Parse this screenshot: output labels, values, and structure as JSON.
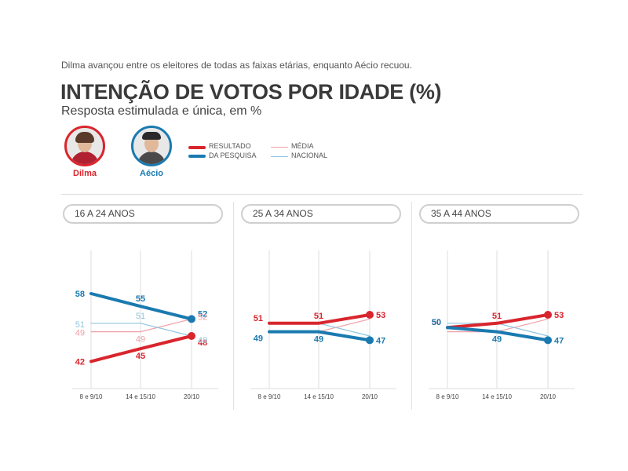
{
  "intro": "Dilma avançou entre os eleitores de todas as faixas etárias, enquanto Aécio recuou.",
  "title": "INTENÇÃO DE VOTOS POR IDADE (%)",
  "subtitle": "Resposta estimulada e única, em %",
  "candidates": [
    {
      "name": "Dilma",
      "color": "#d9252d"
    },
    {
      "name": "Aécio",
      "color": "#1a7ab0"
    }
  ],
  "legend": {
    "result_line1": "RESULTADO",
    "result_line2": "DA PESQUISA",
    "avg_line1": "MÉDIA",
    "avg_line2": "NACIONAL"
  },
  "colors": {
    "dilma": "#d9252d",
    "aecio": "#1a7ab0",
    "dilma_avg": "#f0a0a6",
    "aecio_avg": "#8fc5e0",
    "grid": "#dddddd"
  },
  "chart_data": [
    {
      "type": "line",
      "title": "16 A 24 ANOS",
      "categories": [
        "8 e 9/10",
        "14 e 15/10",
        "20/10"
      ],
      "series": [
        {
          "name": "Dilma",
          "role": "result",
          "values": [
            42,
            45,
            48
          ],
          "labels": [
            "42",
            "45",
            "48"
          ]
        },
        {
          "name": "Aécio",
          "role": "result",
          "values": [
            58,
            55,
            52
          ],
          "labels": [
            "58",
            "55",
            "52"
          ]
        },
        {
          "name": "Dilma",
          "role": "national_average",
          "values": [
            49,
            49,
            52
          ],
          "labels": [
            "49",
            "49",
            "52"
          ]
        },
        {
          "name": "Aécio",
          "role": "national_average",
          "values": [
            51,
            51,
            48
          ],
          "labels": [
            "51",
            "51",
            "48"
          ]
        }
      ]
    },
    {
      "type": "line",
      "title": "25 A 34 ANOS",
      "categories": [
        "8 e 9/10",
        "14 e 15/10",
        "20/10"
      ],
      "series": [
        {
          "name": "Dilma",
          "role": "result",
          "values": [
            51,
            51,
            53
          ],
          "labels": [
            "51",
            "51",
            "53"
          ]
        },
        {
          "name": "Aécio",
          "role": "result",
          "values": [
            49,
            49,
            47
          ],
          "labels": [
            "49",
            "49",
            "47"
          ]
        },
        {
          "name": "Dilma",
          "role": "national_average",
          "values": [
            49,
            49,
            52
          ],
          "labels": [
            "",
            "",
            ""
          ]
        },
        {
          "name": "Aécio",
          "role": "national_average",
          "values": [
            51,
            51,
            48
          ],
          "labels": [
            "",
            "",
            ""
          ]
        }
      ]
    },
    {
      "type": "line",
      "title": "35 A 44 ANOS",
      "categories": [
        "8 e 9/10",
        "14 e 15/10",
        "20/10"
      ],
      "series": [
        {
          "name": "Dilma",
          "role": "result",
          "values": [
            50,
            51,
            53
          ],
          "labels": [
            "50",
            "51",
            "53"
          ]
        },
        {
          "name": "Aécio",
          "role": "result",
          "values": [
            50,
            49,
            47
          ],
          "labels": [
            "50",
            "49",
            "47"
          ]
        },
        {
          "name": "Dilma",
          "role": "national_average",
          "values": [
            49,
            49,
            52
          ],
          "labels": [
            "",
            "",
            ""
          ]
        },
        {
          "name": "Aécio",
          "role": "national_average",
          "values": [
            51,
            51,
            48
          ],
          "labels": [
            "",
            "",
            ""
          ]
        }
      ]
    }
  ]
}
